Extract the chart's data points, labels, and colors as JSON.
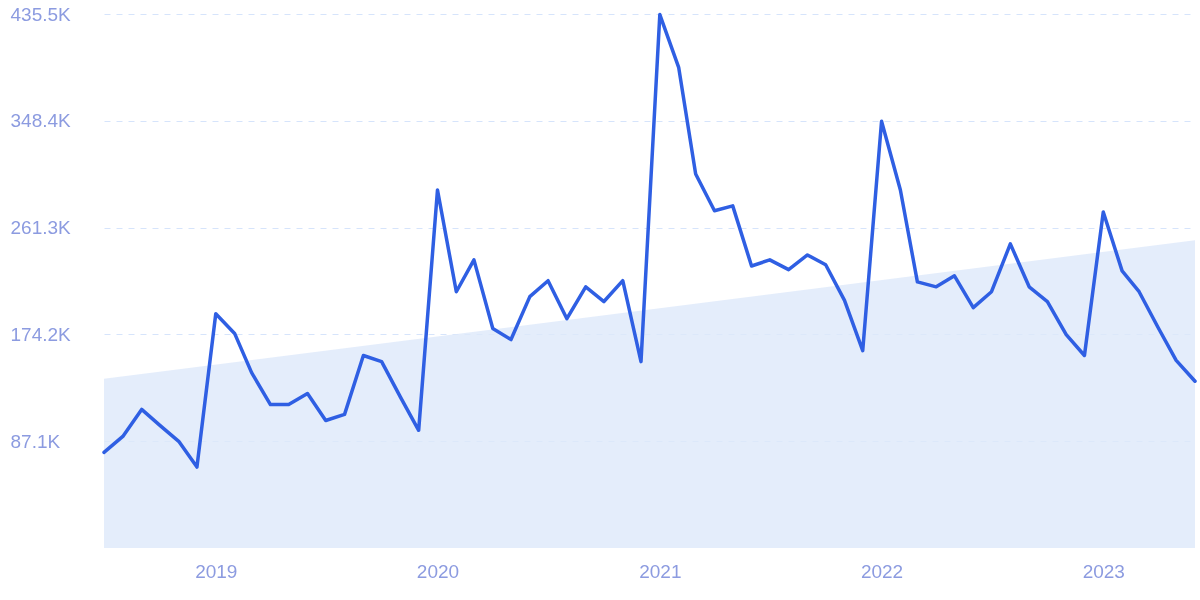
{
  "chart_data": {
    "type": "line",
    "x": [
      "2018-07",
      "2018-08",
      "2018-09",
      "2018-10",
      "2018-11",
      "2018-12",
      "2019-01",
      "2019-02",
      "2019-03",
      "2019-04",
      "2019-05",
      "2019-06",
      "2019-07",
      "2019-08",
      "2019-09",
      "2019-10",
      "2019-11",
      "2019-12",
      "2020-01",
      "2020-02",
      "2020-03",
      "2020-04",
      "2020-05",
      "2020-06",
      "2020-07",
      "2020-08",
      "2020-09",
      "2020-10",
      "2020-11",
      "2020-12",
      "2021-01",
      "2021-02",
      "2021-03",
      "2021-04",
      "2021-05",
      "2021-06",
      "2021-07",
      "2021-08",
      "2021-09",
      "2021-10",
      "2021-11",
      "2021-12",
      "2022-01",
      "2022-02",
      "2022-03",
      "2022-04",
      "2022-05",
      "2022-06",
      "2022-07",
      "2022-08",
      "2022-09",
      "2022-10",
      "2022-11",
      "2022-12",
      "2023-01",
      "2023-02",
      "2023-03",
      "2023-04",
      "2023-05",
      "2023-06"
    ],
    "series": [
      {
        "type": "area",
        "color": "#dde9fa",
        "x": [
          "2018-07",
          "2023-06"
        ],
        "values": [
          138000,
          251000
        ]
      },
      {
        "color": "#2f5fe3",
        "values": [
          78000,
          91000,
          113000,
          100000,
          87000,
          66000,
          191000,
          175000,
          143000,
          117000,
          117000,
          126000,
          104000,
          109000,
          157000,
          152000,
          123000,
          96000,
          292000,
          209000,
          235000,
          179000,
          170000,
          205000,
          218000,
          187000,
          213000,
          201000,
          218000,
          152000,
          435000,
          392000,
          305000,
          275000,
          279000,
          230000,
          235000,
          227000,
          239000,
          231000,
          202000,
          161000,
          348000,
          292000,
          217000,
          213000,
          222000,
          196000,
          209000,
          248000,
          213000,
          201000,
          174000,
          157000,
          274000,
          226000,
          209000,
          180000,
          153000,
          136000
        ]
      }
    ],
    "xlim": [
      "2018-07",
      "2023-06"
    ],
    "xticks": [
      {
        "value": "2019",
        "label": "2019"
      },
      {
        "value": "2020",
        "label": "2020"
      },
      {
        "value": "2021",
        "label": "2021"
      },
      {
        "value": "2022",
        "label": "2022"
      },
      {
        "value": "2023",
        "label": "2023"
      }
    ],
    "ylim": [
      0,
      435500
    ],
    "yticks": [
      {
        "value": 87100,
        "label": "87.1K"
      },
      {
        "value": 174200,
        "label": "174.2K"
      },
      {
        "value": 261300,
        "label": "261.3K"
      },
      {
        "value": 348400,
        "label": "348.4K"
      },
      {
        "value": 435500,
        "label": "435.5K"
      }
    ],
    "grid": "y",
    "line_style": "solid"
  }
}
